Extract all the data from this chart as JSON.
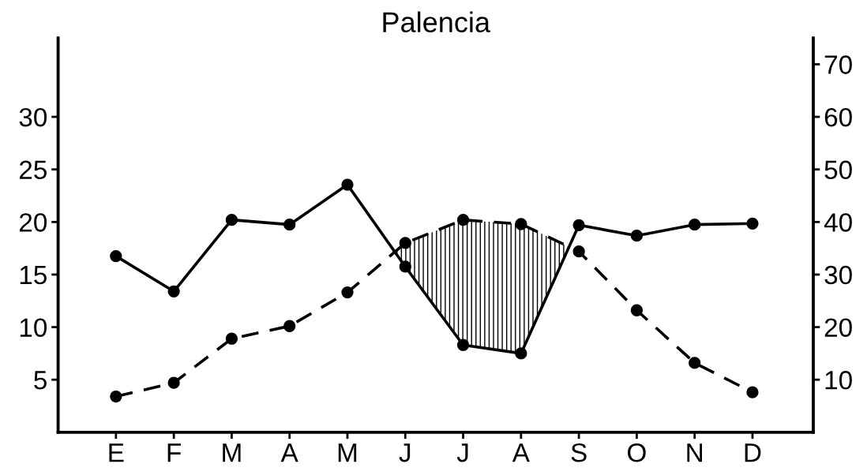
{
  "chart_data": {
    "type": "line",
    "title": "Palencia",
    "categories": [
      "E",
      "F",
      "M",
      "A",
      "M",
      "J",
      "J",
      "A",
      "S",
      "O",
      "N",
      "D"
    ],
    "series": [
      {
        "color": "#000000",
        "line_style": "dashed",
        "values": [
          3.4,
          4.7,
          8.9,
          10.1,
          13.3,
          18.0,
          20.2,
          19.8,
          17.2,
          11.6,
          6.6,
          3.8
        ]
      },
      {
        "color": "#000000",
        "line_style": "solid",
        "axis": "y2",
        "values": [
          33.5,
          26.8,
          40.4,
          39.5,
          47.1,
          31.5,
          16.6,
          15.0,
          39.4,
          37.4,
          39.5,
          39.7
        ]
      }
    ],
    "ylim": [
      0,
      37.5
    ],
    "yticks": [
      5,
      10,
      15,
      20,
      25,
      30
    ],
    "y2lim": [
      0,
      75
    ],
    "y2ticks": [
      10,
      20,
      30,
      40,
      50,
      60,
      70
    ],
    "marker": "circle",
    "grid": false,
    "legend": false
  }
}
